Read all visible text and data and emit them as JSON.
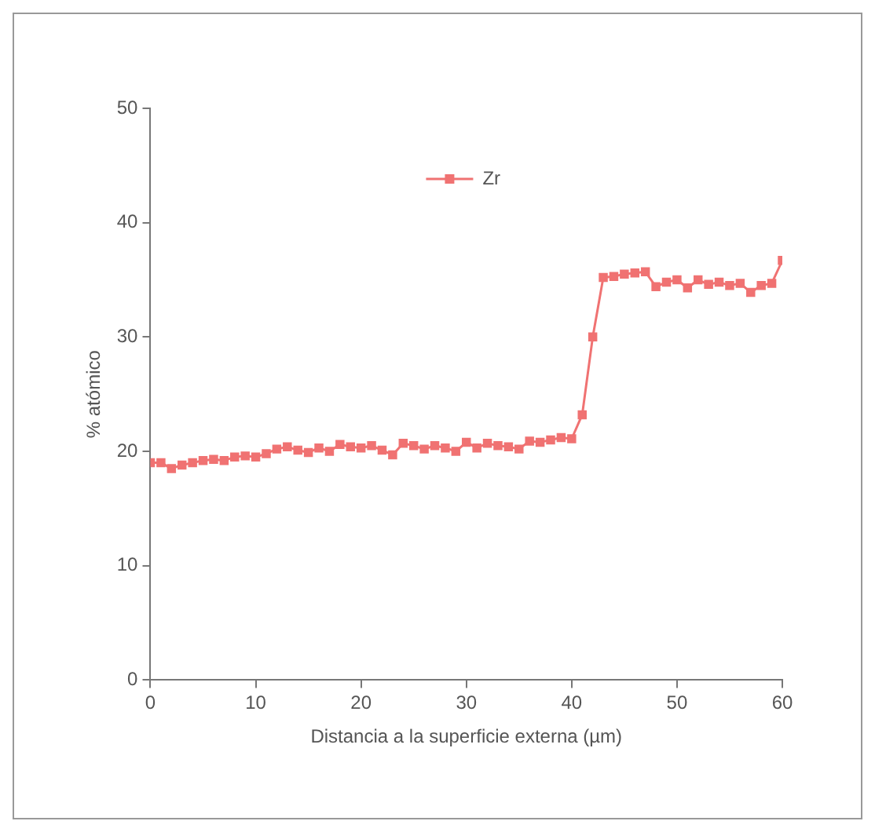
{
  "chart_data": {
    "type": "line",
    "xlabel": "Distancia a la superficie externa (µm)",
    "ylabel": "% atómico",
    "x": [
      0,
      1,
      2,
      3,
      4,
      5,
      6,
      7,
      8,
      9,
      10,
      11,
      12,
      13,
      14,
      15,
      16,
      17,
      18,
      19,
      20,
      21,
      22,
      23,
      24,
      25,
      26,
      27,
      28,
      29,
      30,
      31,
      32,
      33,
      34,
      35,
      36,
      37,
      38,
      39,
      40,
      41,
      42,
      43,
      44,
      45,
      46,
      47,
      48,
      49,
      50,
      51,
      52,
      53,
      54,
      55,
      56,
      57,
      58,
      59,
      60
    ],
    "series": [
      {
        "name": "Zr",
        "color": "#f07272",
        "values": [
          19,
          19,
          18.5,
          18.8,
          19,
          19.2,
          19.3,
          19.2,
          19.5,
          19.6,
          19.5,
          19.8,
          20.2,
          20.4,
          20.1,
          19.9,
          20.3,
          20,
          20.6,
          20.4,
          20.3,
          20.5,
          20.1,
          19.7,
          20.7,
          20.5,
          20.2,
          20.5,
          20.3,
          20,
          20.8,
          20.3,
          20.7,
          20.5,
          20.4,
          20.2,
          20.9,
          20.8,
          21,
          21.2,
          21.1,
          23.2,
          30,
          35.2,
          35.3,
          35.5,
          35.6,
          35.7,
          34.4,
          34.8,
          35,
          34.3,
          35,
          34.6,
          34.8,
          34.5,
          34.7,
          33.9,
          34.5,
          34.7,
          36.7
        ]
      }
    ],
    "xlim": [
      0,
      60
    ],
    "xticks": [
      0,
      10,
      20,
      30,
      40,
      50,
      60
    ],
    "ylim": [
      0,
      50
    ],
    "yticks": [
      0,
      10,
      20,
      30,
      40,
      50
    ],
    "grid": false,
    "legend": "top",
    "marker": "square",
    "line_style": "solid"
  }
}
